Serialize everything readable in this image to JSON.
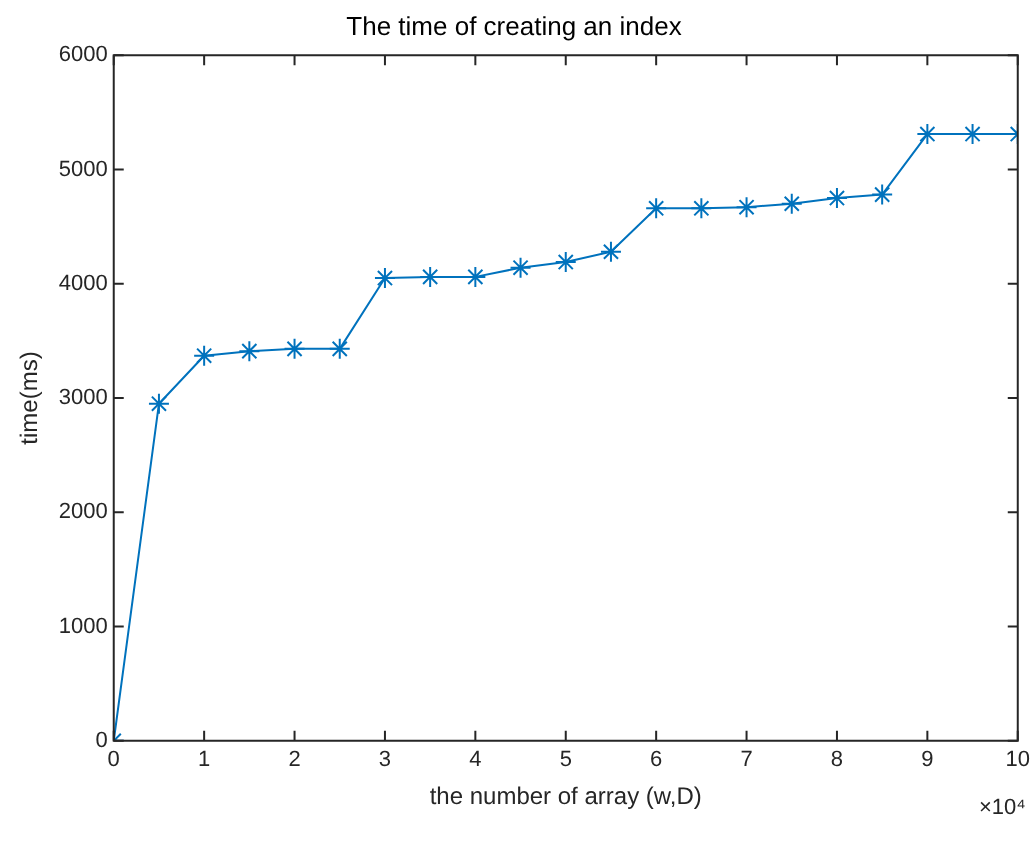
{
  "chart_data": {
    "type": "line",
    "title": "The time of creating an index",
    "xlabel": "the number of array (w,D)",
    "ylabel": "time(ms)",
    "x": [
      0,
      0.5,
      1,
      1.5,
      2,
      2.5,
      3,
      3.5,
      4,
      4.5,
      5,
      5.5,
      6,
      6.5,
      7,
      7.5,
      8,
      8.5,
      9,
      9.5,
      10
    ],
    "series": [
      {
        "color": "#0072bd",
        "values": [
          0,
          2950,
          3370,
          3410,
          3430,
          3430,
          4050,
          4060,
          4060,
          4140,
          4190,
          4280,
          4660,
          4660,
          4670,
          4700,
          4750,
          4780,
          5310,
          5310,
          5310
        ]
      }
    ],
    "xlim": [
      0,
      10
    ],
    "ylim": [
      0,
      6000
    ],
    "xticks": [
      0,
      1,
      2,
      3,
      4,
      5,
      6,
      7,
      8,
      9,
      10
    ],
    "yticks": [
      0,
      1000,
      2000,
      3000,
      4000,
      5000,
      6000
    ],
    "annotations": [
      "×10⁴"
    ],
    "grid": false,
    "legend": false,
    "marker": "cross",
    "line_style": "solid"
  }
}
